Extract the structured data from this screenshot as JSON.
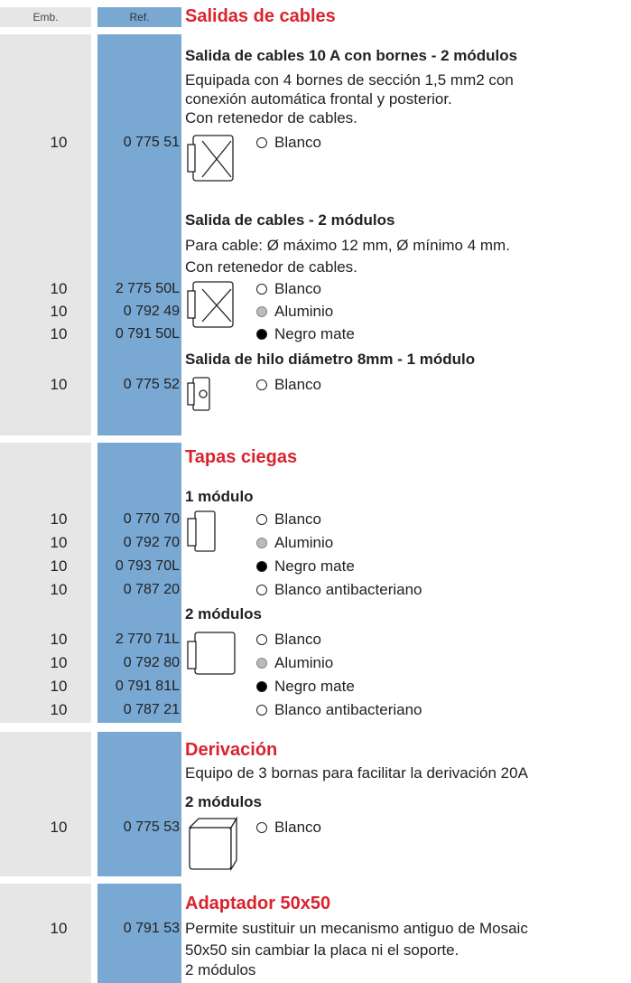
{
  "header": {
    "emb": "Emb.",
    "ref": "Ref."
  },
  "sections": [
    {
      "title": "Salidas de cables",
      "products": [
        {
          "name": "Salida de cables 10 A con bornes - 2 módulos",
          "description": [
            "Equipada con 4 bornes de sección 1,5 mm2 con",
            "conexión automática frontal y posterior.",
            "Con retenedor de cables."
          ],
          "items": [
            {
              "emb": 10,
              "ref": "0 775 51",
              "finish": "Blanco"
            }
          ]
        },
        {
          "name": "Salida de cables - 2 módulos",
          "description": [
            "Para cable: Ø máximo 12 mm, Ø mínimo 4 mm.",
            "Con retenedor de cables."
          ],
          "items": [
            {
              "emb": 10,
              "ref": "2 775 50L",
              "finish": "Blanco"
            },
            {
              "emb": 10,
              "ref": "0 792 49",
              "finish": "Aluminio"
            },
            {
              "emb": 10,
              "ref": "0 791 50L",
              "finish": "Negro mate"
            }
          ]
        },
        {
          "name": "Salida de hilo diámetro 8mm - 1 módulo",
          "items": [
            {
              "emb": 10,
              "ref": "0 775 52",
              "finish": "Blanco"
            }
          ]
        }
      ]
    },
    {
      "title": "Tapas ciegas",
      "products": [
        {
          "name": "1 módulo",
          "items": [
            {
              "emb": 10,
              "ref": "0 770 70",
              "finish": "Blanco"
            },
            {
              "emb": 10,
              "ref": "0 792 70",
              "finish": "Aluminio"
            },
            {
              "emb": 10,
              "ref": "0 793 70L",
              "finish": "Negro mate"
            },
            {
              "emb": 10,
              "ref": "0 787 20",
              "finish": "Blanco antibacteriano"
            }
          ]
        },
        {
          "name": "2 módulos",
          "items": [
            {
              "emb": 10,
              "ref": "2 770 71L",
              "finish": "Blanco"
            },
            {
              "emb": 10,
              "ref": "0 792 80",
              "finish": "Aluminio"
            },
            {
              "emb": 10,
              "ref": "0 791 81L",
              "finish": "Negro mate"
            },
            {
              "emb": 10,
              "ref": "0 787 21",
              "finish": "Blanco antibacteriano"
            }
          ]
        }
      ]
    },
    {
      "title": "Derivación",
      "description": [
        "Equipo de 3 bornas para facilitar la derivación 20A"
      ],
      "products": [
        {
          "name": "2 módulos",
          "items": [
            {
              "emb": 10,
              "ref": "0 775 53",
              "finish": "Blanco"
            }
          ]
        }
      ]
    },
    {
      "title": "Adaptador 50x50",
      "items": [
        {
          "emb": 10,
          "ref": "0 791 53"
        }
      ],
      "description": [
        "Permite sustituir un mecanismo antiguo de Mosaic",
        "50x50 sin cambiar la placa ni el soporte.",
        "2 módulos"
      ]
    }
  ]
}
